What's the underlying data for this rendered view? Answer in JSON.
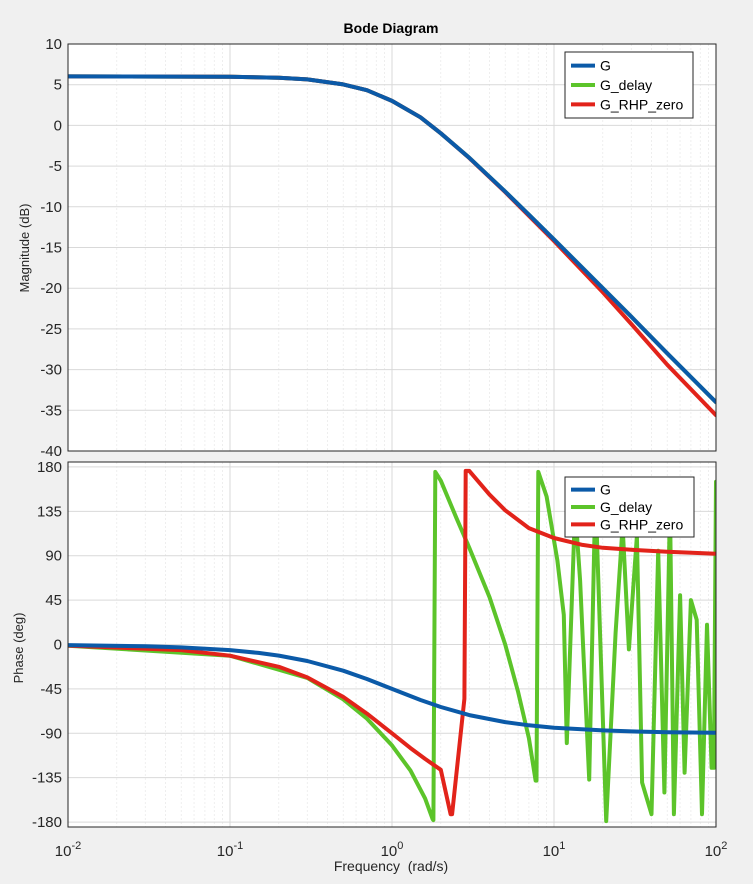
{
  "chart_data": [
    {
      "type": "line",
      "title": "Bode Diagram",
      "xlabel": "",
      "ylabel": "Magnitude (dB)",
      "xscale": "log",
      "xlim": [
        0.01,
        100
      ],
      "ylim": [
        -40,
        10
      ],
      "yticks": [
        10,
        5,
        0,
        -5,
        -10,
        -15,
        -20,
        -25,
        -30,
        -35,
        -40
      ],
      "legend": "top-right",
      "grid": true,
      "series": [
        {
          "name": "G",
          "color": "#0b5aa8",
          "x": [
            0.01,
            0.05,
            0.1,
            0.2,
            0.3,
            0.5,
            0.7,
            1,
            1.5,
            2,
            3,
            5,
            7,
            10,
            20,
            30,
            50,
            100
          ],
          "y": [
            6.02,
            5.99,
            5.98,
            5.85,
            5.65,
            5.04,
            4.32,
            3.01,
            1.0,
            -0.97,
            -3.98,
            -8.13,
            -10.97,
            -14.0,
            -20.0,
            -23.5,
            -28.0,
            -34.0
          ]
        },
        {
          "name": "G_delay",
          "color": "#5cc42a",
          "x": [
            0.01,
            0.05,
            0.1,
            0.2,
            0.3,
            0.5,
            0.7,
            1,
            1.5,
            2,
            3,
            5,
            7,
            10,
            20,
            30,
            50,
            100
          ],
          "y": [
            6.02,
            5.99,
            5.98,
            5.85,
            5.65,
            5.04,
            4.32,
            3.01,
            1.0,
            -0.97,
            -3.98,
            -8.13,
            -10.97,
            -14.0,
            -20.0,
            -23.5,
            -28.0,
            -34.0
          ]
        },
        {
          "name": "G_RHP_zero",
          "color": "#e2231a",
          "x": [
            0.01,
            0.05,
            0.1,
            0.2,
            0.3,
            0.5,
            0.7,
            1,
            1.5,
            2,
            3,
            5,
            7,
            10,
            20,
            30,
            50,
            100
          ],
          "y": [
            6.02,
            5.99,
            5.98,
            5.85,
            5.65,
            5.04,
            4.32,
            3.01,
            1.0,
            -0.97,
            -4.0,
            -8.2,
            -11.1,
            -14.2,
            -20.5,
            -24.4,
            -29.4,
            -35.6
          ]
        }
      ]
    },
    {
      "type": "line",
      "title": "",
      "xlabel": "Frequency  (rad/s)",
      "ylabel": "Phase (deg)",
      "xscale": "log",
      "xlim": [
        0.01,
        100
      ],
      "ylim": [
        -185,
        185
      ],
      "yticks": [
        180,
        135,
        90,
        45,
        0,
        -45,
        -90,
        -135,
        -180
      ],
      "xticks": [
        "10-2",
        "10-1",
        "100",
        "101",
        "102"
      ],
      "legend": "top-right",
      "grid": true,
      "series": [
        {
          "name": "G",
          "color": "#0b5aa8",
          "x": [
            0.01,
            0.03,
            0.05,
            0.1,
            0.15,
            0.2,
            0.3,
            0.5,
            0.7,
            1,
            1.5,
            2,
            3,
            5,
            7,
            10,
            20,
            30,
            50,
            100
          ],
          "y": [
            -0.6,
            -1.7,
            -2.9,
            -5.7,
            -8.5,
            -11.3,
            -16.7,
            -26.6,
            -35.0,
            -45.0,
            -56.3,
            -63.4,
            -71.6,
            -78.7,
            -81.9,
            -84.3,
            -87.1,
            -88.1,
            -88.9,
            -89.4
          ]
        },
        {
          "name": "G_delay",
          "color": "#5cc42a",
          "x": [
            0.01,
            0.1,
            0.3,
            0.5,
            0.7,
            1.0,
            1.3,
            1.6,
            1.78,
            1.8,
            1.85,
            2.0,
            2.5,
            3.0,
            4.0,
            5.0,
            6.0,
            7.0,
            7.7,
            7.8,
            8.0,
            9.0,
            10.5,
            11.5,
            12.0,
            13.5,
            14.5,
            16.5,
            18.0,
            21.0,
            24.0,
            26.5,
            29.0,
            32.5,
            35.0,
            40.0,
            44.0,
            48.0,
            52.0,
            55.0,
            60.0,
            64.0,
            70.0,
            76.0,
            82.0,
            88.0,
            94.0,
            97.0,
            100.0
          ],
          "y": [
            -1.2,
            -11.4,
            -33.9,
            -55.5,
            -75.1,
            -102.3,
            -127.8,
            -156.0,
            -177.0,
            -178.0,
            175.0,
            166.0,
            128.0,
            98.0,
            48.0,
            0.0,
            -48.0,
            -95.0,
            -138.0,
            -138.0,
            175.0,
            150.0,
            85.0,
            30.0,
            -100.0,
            138.0,
            65.0,
            -137.0,
            155.0,
            -179.0,
            12.0,
            120.0,
            -5.0,
            110.0,
            -140.0,
            -172.0,
            95.0,
            -150.0,
            140.0,
            -172.0,
            50.0,
            -130.0,
            45.0,
            25.0,
            -172.0,
            20.0,
            -125.0,
            -125.0,
            165.0
          ]
        },
        {
          "name": "G_RHP_zero",
          "color": "#e2231a",
          "x": [
            0.01,
            0.05,
            0.1,
            0.2,
            0.3,
            0.5,
            0.7,
            1.0,
            1.3,
            1.6,
            2.0,
            2.3,
            2.35,
            2.8,
            2.85,
            3.0,
            4.0,
            5.0,
            7.0,
            10.0,
            15.0,
            20.0,
            30.0,
            50.0,
            100.0
          ],
          "y": [
            -1.1,
            -5.7,
            -11.4,
            -22.6,
            -33.4,
            -53.1,
            -70.0,
            -90.0,
            -105.0,
            -116.0,
            -127.0,
            -172.0,
            -172.0,
            -55.0,
            176.0,
            176.0,
            152.0,
            136.0,
            118.0,
            108.0,
            101.0,
            98.0,
            96.0,
            94.0,
            92.0
          ]
        }
      ]
    }
  ]
}
